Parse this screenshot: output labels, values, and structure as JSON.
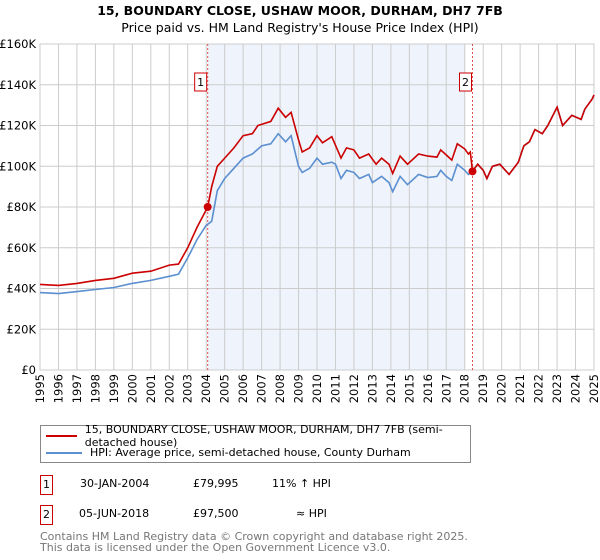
{
  "chart_data": {
    "type": "line",
    "title": "15, BOUNDARY CLOSE, USHAW MOOR, DURHAM, DH7 7FB",
    "subtitle": "Price paid vs. HM Land Registry's House Price Index (HPI)",
    "xlim": [
      1995,
      2025
    ],
    "ylim": [
      0,
      160000
    ],
    "y_ticks": [
      {
        "v": 0,
        "label": "£0"
      },
      {
        "v": 20000,
        "label": "£20K"
      },
      {
        "v": 40000,
        "label": "£40K"
      },
      {
        "v": 60000,
        "label": "£60K"
      },
      {
        "v": 80000,
        "label": "£80K"
      },
      {
        "v": 100000,
        "label": "£100K"
      },
      {
        "v": 120000,
        "label": "£120K"
      },
      {
        "v": 140000,
        "label": "£140K"
      },
      {
        "v": 160000,
        "label": "£160K"
      }
    ],
    "x_ticks": [
      "1995",
      "1996",
      "1997",
      "1998",
      "1999",
      "2000",
      "2001",
      "2002",
      "2003",
      "2004",
      "2005",
      "2006",
      "2007",
      "2008",
      "2009",
      "2010",
      "2011",
      "2012",
      "2013",
      "2014",
      "2015",
      "2016",
      "2017",
      "2018",
      "2019",
      "2020",
      "2021",
      "2022",
      "2023",
      "2024",
      "2025"
    ],
    "grid": true,
    "shaded_range": [
      2004.08,
      2018.0
    ],
    "series": [
      {
        "name": "15, BOUNDARY CLOSE, USHAW MOOR, DURHAM, DH7 7FB (semi-detached house)",
        "color": "#cc0000",
        "x": [
          1995,
          1996,
          1997,
          1998,
          1999,
          2000,
          2001,
          2002,
          2002.5,
          2003,
          2003.5,
          2004.08,
          2004.3,
          2004.6,
          2005,
          2005.5,
          2006,
          2006.5,
          2006.8,
          2007.5,
          2007.9,
          2008.3,
          2008.6,
          2009,
          2009.2,
          2009.6,
          2010,
          2010.3,
          2010.8,
          2011.3,
          2011.6,
          2012,
          2012.3,
          2012.8,
          2013.2,
          2013.5,
          2013.9,
          2014.1,
          2014.5,
          2014.9,
          2015.5,
          2016,
          2016.5,
          2016.7,
          2017,
          2017.3,
          2017.6,
          2018,
          2018.2,
          2018.3,
          2018.42,
          2018.7,
          2019,
          2019.2,
          2019.5,
          2019.9,
          2020.4,
          2020.9,
          2021.2,
          2021.5,
          2021.8,
          2022.2,
          2022.5,
          2023,
          2023.3,
          2023.8,
          2024.3,
          2024.5,
          2024.9,
          2025
        ],
        "y": [
          42000,
          41500,
          42500,
          44000,
          45000,
          47500,
          48500,
          51500,
          52000,
          60000,
          70000,
          79995,
          90000,
          100000,
          104000,
          109000,
          115000,
          116000,
          120000,
          122000,
          128500,
          124000,
          126500,
          113000,
          107000,
          109000,
          115000,
          111500,
          114500,
          104000,
          109000,
          108000,
          104000,
          106000,
          101000,
          104000,
          101000,
          96500,
          105000,
          101000,
          106000,
          105000,
          104500,
          108000,
          105500,
          103000,
          111000,
          108500,
          106000,
          107000,
          97500,
          101000,
          98000,
          94000,
          100000,
          101000,
          96000,
          102000,
          110000,
          112000,
          118000,
          116000,
          120000,
          129000,
          120000,
          125000,
          123000,
          128000,
          133000,
          135000
        ]
      },
      {
        "name": "HPI: Average price, semi-detached house, County Durham",
        "color": "#5b8fd0",
        "x": [
          1995,
          1996,
          1997,
          1998,
          1999,
          2000,
          2001,
          2002,
          2002.5,
          2003,
          2003.5,
          2004,
          2004.3,
          2004.6,
          2005,
          2005.5,
          2006,
          2006.5,
          2007,
          2007.5,
          2007.9,
          2008.3,
          2008.6,
          2009,
          2009.2,
          2009.6,
          2010,
          2010.3,
          2010.8,
          2011,
          2011.3,
          2011.6,
          2012,
          2012.3,
          2012.8,
          2013,
          2013.5,
          2013.9,
          2014.1,
          2014.5,
          2014.9,
          2015.5,
          2016,
          2016.5,
          2016.7,
          2017,
          2017.3,
          2017.6,
          2018,
          2018.2,
          2018.42,
          2018.7,
          2019,
          2019.2,
          2019.5,
          2019.9,
          2020.4,
          2020.9,
          2021.2,
          2021.5,
          2021.8,
          2022.2,
          2022.5,
          2023,
          2023.3,
          2023.8,
          2024.3,
          2024.5,
          2024.9,
          2025
        ],
        "y": [
          38000,
          37500,
          38500,
          39500,
          40500,
          42500,
          44000,
          46000,
          47000,
          55000,
          64000,
          71000,
          73000,
          88000,
          94000,
          99000,
          104000,
          106000,
          110000,
          111000,
          116000,
          112000,
          115000,
          100000,
          97000,
          99000,
          104000,
          101000,
          102000,
          101000,
          94000,
          98000,
          97000,
          94000,
          96000,
          92000,
          95000,
          92000,
          87500,
          95000,
          91000,
          96000,
          94500,
          95000,
          98000,
          95000,
          93000,
          101000,
          98000,
          96000,
          97500,
          101000,
          98000,
          94000,
          100000,
          101000,
          96000,
          102000,
          110000,
          112000,
          118000,
          116000,
          120000,
          129000,
          120000,
          125000,
          123000,
          128000,
          133000,
          135000
        ]
      }
    ],
    "annotations": [
      {
        "label": "1",
        "x": 2004.08,
        "y": 79995
      },
      {
        "label": "2",
        "x": 2018.42,
        "y": 97500
      }
    ]
  },
  "legend": {
    "items": [
      {
        "label": "15, BOUNDARY CLOSE, USHAW MOOR, DURHAM, DH7 7FB (semi-detached house)",
        "color": "#cc0000"
      },
      {
        "label": "HPI: Average price, semi-detached house, County Durham",
        "color": "#5b8fd0"
      }
    ]
  },
  "transactions": [
    {
      "num": "1",
      "date": "30-JAN-2004",
      "price": "£79,995",
      "hpi": "11% ↑ HPI"
    },
    {
      "num": "2",
      "date": "05-JUN-2018",
      "price": "£97,500",
      "hpi": "≈ HPI"
    }
  ],
  "footer": {
    "line1": "Contains HM Land Registry data © Crown copyright and database right 2025.",
    "line2": "This data is licensed under the Open Government Licence v3.0."
  }
}
